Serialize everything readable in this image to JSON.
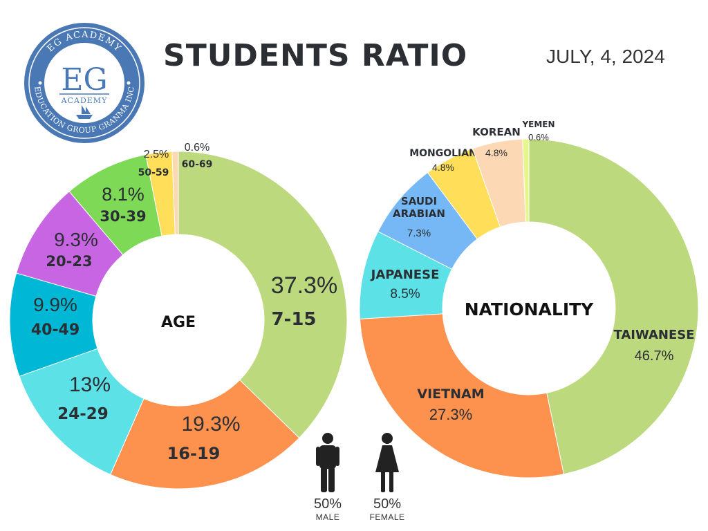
{
  "header": {
    "title": "STUDENTS RATIO",
    "date": "JULY, 4, 2024"
  },
  "logo": {
    "arc_top": "EG ACADEMY",
    "arc_bottom": "EDUCATION GROUP GRANMA INC",
    "letters": "EG",
    "word": "ACADEMY"
  },
  "gender": {
    "male": {
      "pct": "50%",
      "label": "MALE",
      "icon": "male-person-icon"
    },
    "female": {
      "pct": "50%",
      "label": "FEMALE",
      "icon": "female-person-icon"
    }
  },
  "chart_data": [
    {
      "type": "pie",
      "donut": true,
      "center_label": "AGE",
      "slices": [
        {
          "label": "7-15",
          "value": 37.3,
          "display": "37.3%",
          "color": "#bdd97e"
        },
        {
          "label": "16-19",
          "value": 19.3,
          "display": "19.3%",
          "color": "#fd914e"
        },
        {
          "label": "24-29",
          "value": 13.0,
          "display": "13%",
          "color": "#5ce1e6"
        },
        {
          "label": "40-49",
          "value": 9.9,
          "display": "9.9%",
          "color": "#00b8d6"
        },
        {
          "label": "20-23",
          "value": 9.3,
          "display": "9.3%",
          "color": "#c865e3"
        },
        {
          "label": "30-39",
          "value": 8.1,
          "display": "8.1%",
          "color": "#7ed957"
        },
        {
          "label": "50-59",
          "value": 2.5,
          "display": "2.5%",
          "color": "#ffde59"
        },
        {
          "label": "60-69",
          "value": 0.6,
          "display": "0.6%",
          "color": "#fcd8b4"
        }
      ]
    },
    {
      "type": "pie",
      "donut": true,
      "center_label": "NATIONALITY",
      "slices": [
        {
          "label": "TAIWANESE",
          "value": 46.7,
          "display": "46.7%",
          "color": "#bdd97e"
        },
        {
          "label": "VIETNAM",
          "value": 27.3,
          "display": "27.3%",
          "color": "#fd914e"
        },
        {
          "label": "JAPANESE",
          "value": 8.5,
          "display": "8.5%",
          "color": "#5ce1e6"
        },
        {
          "label": "SAUDI ARABIAN",
          "value": 7.3,
          "display": "7.3%",
          "color": "#76b7f5"
        },
        {
          "label": "MONGOLIAN",
          "value": 4.8,
          "display": "4.8%",
          "color": "#ffde59"
        },
        {
          "label": "KOREAN",
          "value": 4.8,
          "display": "4.8%",
          "color": "#fcd8b4"
        },
        {
          "label": "YEMEN",
          "value": 0.6,
          "display": "0.6%",
          "color": "#e6f58c"
        }
      ]
    }
  ]
}
